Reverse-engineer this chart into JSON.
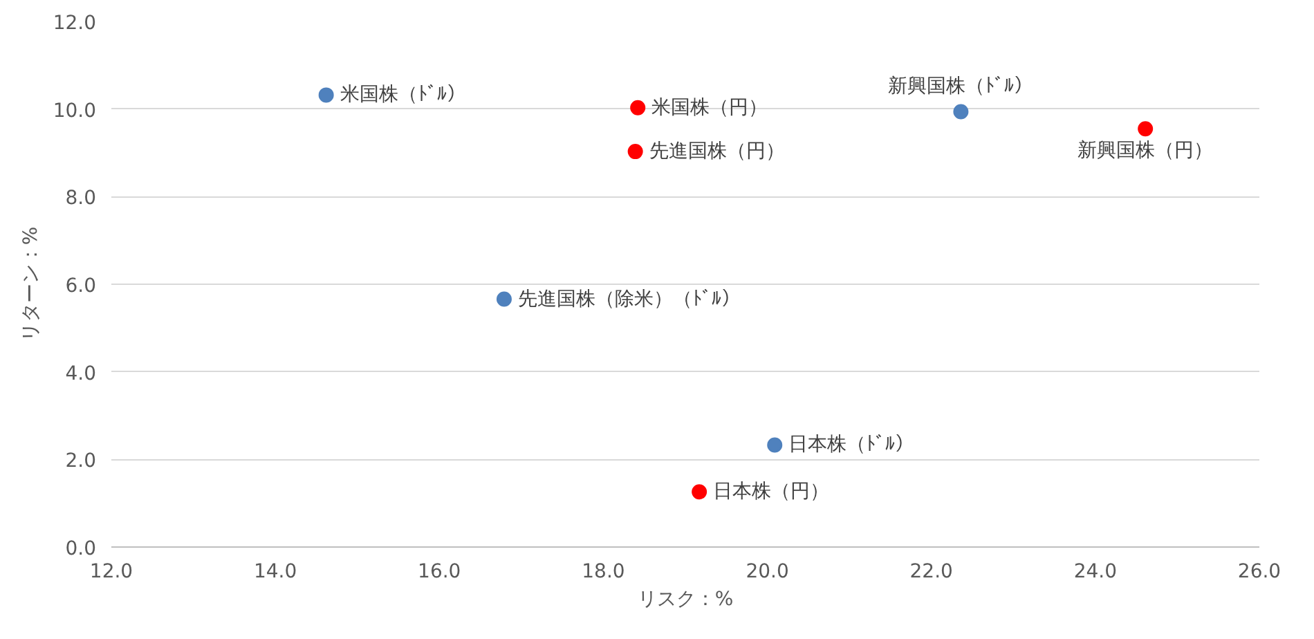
{
  "chart_data": {
    "type": "scatter",
    "xlabel": "リスク：%",
    "ylabel": "リターン：%",
    "xlim": [
      12,
      26
    ],
    "ylim": [
      0,
      12
    ],
    "xticks": [
      {
        "value": 12,
        "label": "12.0"
      },
      {
        "value": 14,
        "label": "14.0"
      },
      {
        "value": 16,
        "label": "16.0"
      },
      {
        "value": 18,
        "label": "18.0"
      },
      {
        "value": 20,
        "label": "20.0"
      },
      {
        "value": 22,
        "label": "22.0"
      },
      {
        "value": 24,
        "label": "24.0"
      },
      {
        "value": 26,
        "label": "26.0"
      }
    ],
    "yticks": [
      {
        "value": 0,
        "label": "0.0"
      },
      {
        "value": 2,
        "label": "2.0"
      },
      {
        "value": 4,
        "label": "4.0"
      },
      {
        "value": 6,
        "label": "6.0"
      },
      {
        "value": 8,
        "label": "8.0"
      },
      {
        "value": 10,
        "label": "10.0"
      },
      {
        "value": 12,
        "label": "12.0"
      }
    ],
    "grid": "y",
    "marker": "circle",
    "series": [
      {
        "color": "#4f81bd",
        "x": [
          14.62,
          16.79,
          20.09,
          22.36
        ],
        "values": [
          10.32,
          5.66,
          2.33,
          9.94
        ]
      },
      {
        "color": "#ff0000",
        "x": [
          18.42,
          18.39,
          19.17,
          24.61
        ],
        "values": [
          10.03,
          9.03,
          1.26,
          9.55
        ]
      }
    ],
    "annotations": [
      {
        "text": "米国株（ﾄﾞﾙ）",
        "x": 14.62,
        "y": 10.32
      },
      {
        "text": "先進国株（除米）（ﾄﾞﾙ）",
        "x": 16.79,
        "y": 5.66
      },
      {
        "text": "日本株（ﾄﾞﾙ）",
        "x": 20.09,
        "y": 2.33
      },
      {
        "text": "新興国株（ﾄﾞﾙ）",
        "x": 22.36,
        "y": 9.94
      },
      {
        "text": "米国株（円）",
        "x": 18.42,
        "y": 10.03
      },
      {
        "text": "先進国株（円）",
        "x": 18.39,
        "y": 9.03
      },
      {
        "text": "日本株（円）",
        "x": 19.17,
        "y": 1.26
      },
      {
        "text": "新興国株（円）",
        "x": 24.61,
        "y": 9.55
      }
    ]
  }
}
